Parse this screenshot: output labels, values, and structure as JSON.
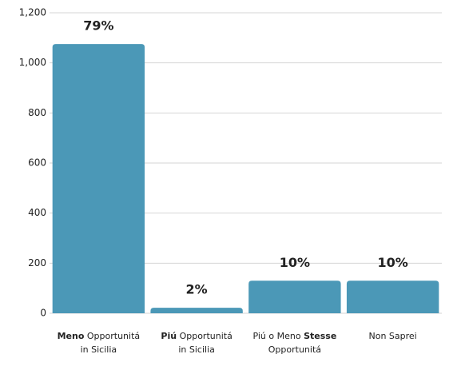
{
  "chart_data": {
    "type": "bar",
    "categories": [
      [
        [
          {
            "text": "Meno",
            "bold": true
          },
          {
            "text": " Opportunitá"
          }
        ],
        [
          {
            "text": "in Sicilia"
          }
        ]
      ],
      [
        [
          {
            "text": "Piú",
            "bold": true
          },
          {
            "text": " Opportunitá"
          }
        ],
        [
          {
            "text": "in Sicilia"
          }
        ]
      ],
      [
        [
          {
            "text": "Piú o Meno "
          },
          {
            "text": "Stesse",
            "bold": true
          }
        ],
        [
          {
            "text": "Opportunitá"
          }
        ]
      ],
      [
        [
          {
            "text": "Non Saprei"
          }
        ]
      ]
    ],
    "values": [
      1075,
      22,
      130,
      130
    ],
    "value_labels": [
      "79%",
      "2%",
      "10%",
      "10%"
    ],
    "color": "#4b98b7",
    "ylim": [
      0,
      1200
    ],
    "yticks": [
      0,
      200,
      400,
      600,
      800,
      {
        "value": 1000,
        "label": "1,000"
      },
      {
        "value": 1200,
        "label": "1,200"
      }
    ],
    "grid": true
  }
}
